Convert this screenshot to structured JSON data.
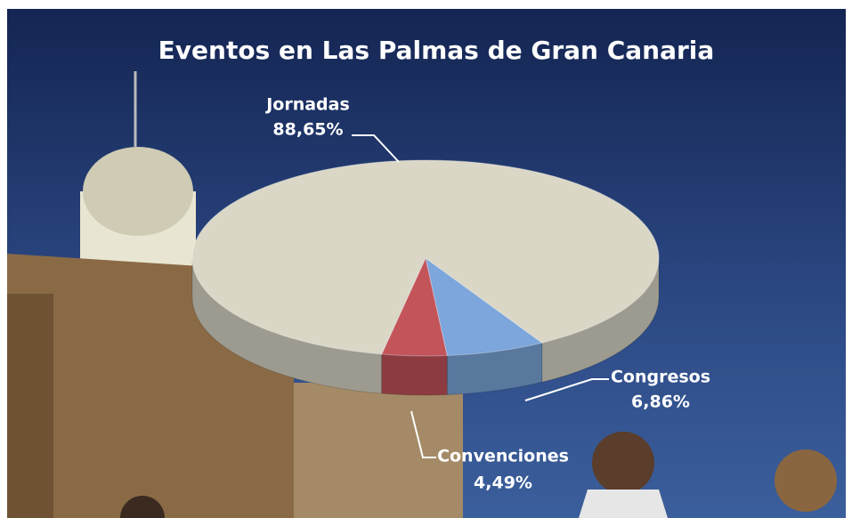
{
  "chart_data": {
    "type": "pie",
    "title": "Eventos en Las Palmas de Gran Canaria",
    "categories": [
      "Jornadas",
      "Congresos",
      "Convenciones"
    ],
    "values": [
      88.65,
      6.86,
      4.49
    ],
    "value_labels": [
      "88,65%",
      "6,86%",
      "4,49%"
    ],
    "colors": [
      "#dad7c6",
      "#7ca6dc",
      "#c2545a"
    ]
  }
}
